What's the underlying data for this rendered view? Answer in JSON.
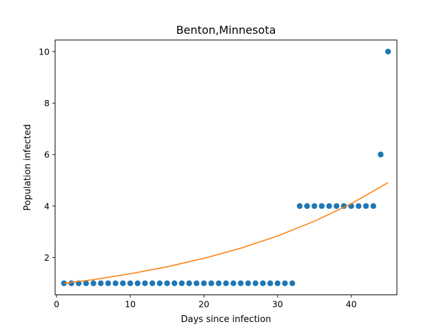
{
  "chart_data": {
    "type": "scatter",
    "title": "Benton,Minnesota",
    "xlabel": "Days since infection",
    "ylabel": "Population infected",
    "xlim": [
      -0.2,
      46.2
    ],
    "ylim": [
      0.55,
      10.45
    ],
    "xticks": [
      0,
      10,
      20,
      30,
      40
    ],
    "yticks": [
      2,
      4,
      6,
      8,
      10
    ],
    "grid": false,
    "series": [
      {
        "type": "scatter",
        "color": "#1f77b4",
        "x": [
          1,
          2,
          3,
          4,
          5,
          6,
          7,
          8,
          9,
          10,
          11,
          12,
          13,
          14,
          15,
          16,
          17,
          18,
          19,
          20,
          21,
          22,
          23,
          24,
          25,
          26,
          27,
          28,
          29,
          30,
          31,
          32,
          33,
          34,
          35,
          36,
          37,
          38,
          39,
          40,
          41,
          42,
          43,
          44,
          45
        ],
        "y": [
          1,
          1,
          1,
          1,
          1,
          1,
          1,
          1,
          1,
          1,
          1,
          1,
          1,
          1,
          1,
          1,
          1,
          1,
          1,
          1,
          1,
          1,
          1,
          1,
          1,
          1,
          1,
          1,
          1,
          1,
          1,
          1,
          4,
          4,
          4,
          4,
          4,
          4,
          4,
          4,
          4,
          4,
          4,
          6,
          10
        ]
      },
      {
        "type": "line",
        "color": "#ff7f0e",
        "x": [
          1,
          5,
          10,
          15,
          20,
          25,
          30,
          35,
          40,
          45
        ],
        "y": [
          1.0,
          1.14,
          1.37,
          1.64,
          1.97,
          2.36,
          2.84,
          3.41,
          4.09,
          4.91
        ]
      }
    ]
  }
}
